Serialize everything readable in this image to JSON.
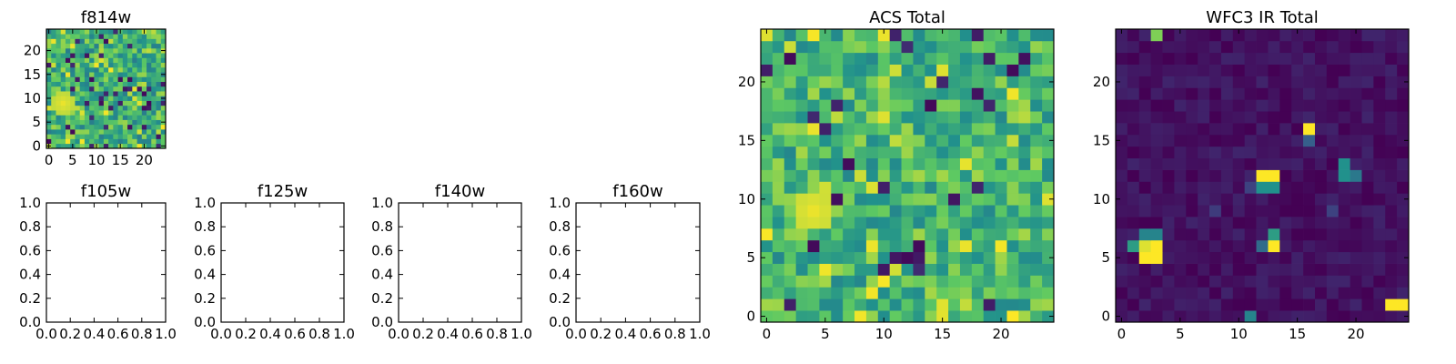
{
  "colormap": [
    "#440154",
    "#3b528b",
    "#21918c",
    "#5ec962",
    "#fde725"
  ],
  "chart_data": [
    {
      "id": "f814w",
      "type": "heatmap",
      "title": "f814w",
      "xlim": [
        -0.5,
        24.5
      ],
      "ylim": [
        -0.5,
        24.5
      ],
      "xticks": [
        0,
        5,
        10,
        15,
        20
      ],
      "yticks": [
        0,
        5,
        10,
        15,
        20
      ],
      "rows": 25,
      "cols": 25,
      "seed": 814,
      "hot_spots": [
        {
          "x": 3,
          "y": 9,
          "r": 2.6,
          "v": 0.97
        }
      ],
      "base": 0.64,
      "noise": 0.22,
      "dark_frac": 0.07,
      "bright_frac": 0.05
    },
    {
      "id": "f105w",
      "type": "empty",
      "title": "f105w",
      "xlim": [
        0,
        1
      ],
      "ylim": [
        0,
        1
      ],
      "xticks": [
        "0.0",
        "0.2",
        "0.4",
        "0.6",
        "0.8",
        "1.0"
      ],
      "yticks": [
        "0.0",
        "0.2",
        "0.4",
        "0.6",
        "0.8",
        "1.0"
      ]
    },
    {
      "id": "f125w",
      "type": "empty",
      "title": "f125w",
      "xlim": [
        0,
        1
      ],
      "ylim": [
        0,
        1
      ],
      "xticks": [
        "0.0",
        "0.2",
        "0.4",
        "0.6",
        "0.8",
        "1.0"
      ],
      "yticks": [
        "0.0",
        "0.2",
        "0.4",
        "0.6",
        "0.8",
        "1.0"
      ]
    },
    {
      "id": "f140w",
      "type": "empty",
      "title": "f140w",
      "xlim": [
        0,
        1
      ],
      "ylim": [
        0,
        1
      ],
      "xticks": [
        "0.0",
        "0.2",
        "0.4",
        "0.6",
        "0.8",
        "1.0"
      ],
      "yticks": [
        "0.0",
        "0.2",
        "0.4",
        "0.6",
        "0.8",
        "1.0"
      ]
    },
    {
      "id": "f160w",
      "type": "empty",
      "title": "f160w",
      "xlim": [
        0,
        1
      ],
      "ylim": [
        0,
        1
      ],
      "xticks": [
        "0.0",
        "0.2",
        "0.4",
        "0.6",
        "0.8",
        "1.0"
      ],
      "yticks": [
        "0.0",
        "0.2",
        "0.4",
        "0.6",
        "0.8",
        "1.0"
      ]
    },
    {
      "id": "acs-total",
      "type": "heatmap",
      "title": "ACS Total",
      "xlim": [
        -0.5,
        24.5
      ],
      "ylim": [
        -0.5,
        24.5
      ],
      "xticks": [
        0,
        5,
        10,
        15,
        20
      ],
      "yticks": [
        0,
        5,
        10,
        15,
        20
      ],
      "rows": 25,
      "cols": 25,
      "seed": 1234,
      "hot_spots": [
        {
          "x": 4,
          "y": 9,
          "r": 1.8,
          "v": 0.97
        },
        {
          "x": 21,
          "y": 19,
          "r": 0.6,
          "v": 0.98
        },
        {
          "x": 15,
          "y": 21,
          "r": 0.6,
          "v": 0.95
        }
      ],
      "base": 0.66,
      "noise": 0.2,
      "dark_frac": 0.05,
      "bright_frac": 0.05
    },
    {
      "id": "wfc3-ir-total",
      "type": "heatmap",
      "title": "WFC3 IR Total",
      "xlim": [
        -0.5,
        24.5
      ],
      "ylim": [
        -0.5,
        24.5
      ],
      "xticks": [
        0,
        5,
        10,
        15,
        20
      ],
      "yticks": [
        0,
        5,
        10,
        15,
        20
      ],
      "rows": 25,
      "cols": 25,
      "seed": 777,
      "base": 0.05,
      "noise": 0.06,
      "dark_frac": 0.0,
      "bright_frac": 0.0,
      "cells": [
        {
          "x": 3,
          "y": 24,
          "v": 0.8
        },
        {
          "x": 2,
          "y": 5,
          "v": 1.0
        },
        {
          "x": 3,
          "y": 5,
          "v": 1.0
        },
        {
          "x": 2,
          "y": 6,
          "v": 0.95
        },
        {
          "x": 3,
          "y": 6,
          "v": 1.0
        },
        {
          "x": 1,
          "y": 6,
          "v": 0.55
        },
        {
          "x": 2,
          "y": 7,
          "v": 0.45
        },
        {
          "x": 3,
          "y": 7,
          "v": 0.45
        },
        {
          "x": 13,
          "y": 6,
          "v": 1.0
        },
        {
          "x": 13,
          "y": 7,
          "v": 0.55
        },
        {
          "x": 12,
          "y": 6,
          "v": 0.35
        },
        {
          "x": 12,
          "y": 12,
          "v": 1.0
        },
        {
          "x": 13,
          "y": 12,
          "v": 1.0
        },
        {
          "x": 12,
          "y": 11,
          "v": 0.5
        },
        {
          "x": 13,
          "y": 11,
          "v": 0.5
        },
        {
          "x": 16,
          "y": 16,
          "v": 1.0
        },
        {
          "x": 16,
          "y": 15,
          "v": 0.3
        },
        {
          "x": 19,
          "y": 13,
          "v": 0.5
        },
        {
          "x": 19,
          "y": 12,
          "v": 0.5
        },
        {
          "x": 20,
          "y": 12,
          "v": 0.4
        },
        {
          "x": 23,
          "y": 1,
          "v": 1.0
        },
        {
          "x": 24,
          "y": 1,
          "v": 1.0
        },
        {
          "x": 11,
          "y": 0,
          "v": 0.45
        },
        {
          "x": 11,
          "y": 11,
          "v": 0.2
        },
        {
          "x": 8,
          "y": 9,
          "v": 0.18
        },
        {
          "x": 18,
          "y": 9,
          "v": 0.2
        }
      ]
    }
  ]
}
